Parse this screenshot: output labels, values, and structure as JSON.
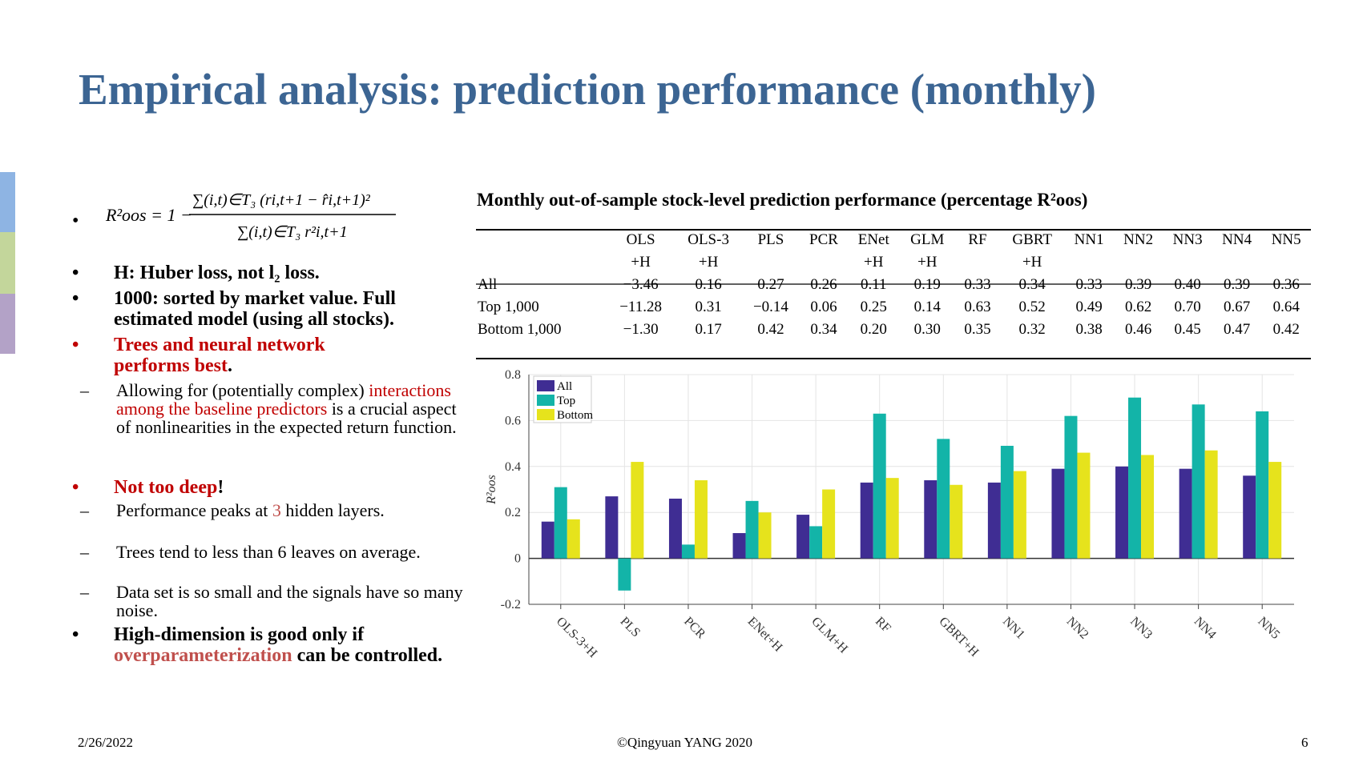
{
  "slide": {
    "title": "Empirical analysis: prediction performance (monthly)",
    "accent_colors": [
      "#8eb4e3",
      "#c3d69b",
      "#b3a2c7"
    ]
  },
  "bullets": {
    "formula": {
      "lhs": "R²oos = 1 −",
      "numerator": "∑(i,t)∈T₃ (ri,t+1 − r̂i,t+1)²",
      "denominator": "∑(i,t)∈T₃ r²i,t+1"
    },
    "huber": "H: Huber loss, not l₂ loss.",
    "sorted": "1000: sorted by market value. Full estimated model (using all stocks).",
    "trees_a": "Trees and neural network performs best",
    "trees_b": ".",
    "allow_a": "Allowing for (potentially complex)",
    "allow_b": "interactions among the baseline predictors",
    "allow_c": "is a crucial aspect of nonlinearities in the expected return function.",
    "deep_a": "Not too deep",
    "deep_b": "!",
    "peak_a": "Performance peaks at",
    "peak_b": "3",
    "peak_c": "hidden layers.",
    "trees_leaves": "Trees tend to less than 6 leaves on average.",
    "dataset": "Data set is so small and the signals have so many noise.",
    "hd_a": "High-dimension is good only if",
    "hd_b": "overparameterization",
    "hd_c": "can be controlled."
  },
  "table": {
    "title": "Monthly out-of-sample stock-level prediction performance (percentage R²oos)",
    "columns": [
      "OLS +H",
      "OLS-3 +H",
      "PLS",
      "PCR",
      "ENet +H",
      "GLM +H",
      "RF",
      "GBRT +H",
      "NN1",
      "NN2",
      "NN3",
      "NN4",
      "NN5"
    ],
    "rows": [
      {
        "label": "All",
        "values": [
          "−3.46",
          "0.16",
          "0.27",
          "0.26",
          "0.11",
          "0.19",
          "0.33",
          "0.34",
          "0.33",
          "0.39",
          "0.40",
          "0.39",
          "0.36"
        ]
      },
      {
        "label": "Top 1,000",
        "values": [
          "−11.28",
          "0.31",
          "−0.14",
          "0.06",
          "0.25",
          "0.14",
          "0.63",
          "0.52",
          "0.49",
          "0.62",
          "0.70",
          "0.67",
          "0.64"
        ]
      },
      {
        "label": "Bottom 1,000",
        "values": [
          "−1.30",
          "0.17",
          "0.42",
          "0.34",
          "0.20",
          "0.30",
          "0.35",
          "0.32",
          "0.38",
          "0.46",
          "0.45",
          "0.47",
          "0.42"
        ]
      }
    ]
  },
  "chart_data": {
    "type": "bar",
    "categories": [
      "OLS-3+H",
      "PLS",
      "PCR",
      "ENet+H",
      "GLM+H",
      "RF",
      "GBRT+H",
      "NN1",
      "NN2",
      "NN3",
      "NN4",
      "NN5"
    ],
    "series": [
      {
        "name": "All",
        "color": "#3f2d93",
        "values": [
          0.16,
          0.27,
          0.26,
          0.11,
          0.19,
          0.33,
          0.34,
          0.33,
          0.39,
          0.4,
          0.39,
          0.36
        ]
      },
      {
        "name": "Top",
        "color": "#13b4a8",
        "values": [
          0.31,
          -0.14,
          0.06,
          0.25,
          0.14,
          0.63,
          0.52,
          0.49,
          0.62,
          0.7,
          0.67,
          0.64
        ]
      },
      {
        "name": "Bottom",
        "color": "#e6e31c",
        "values": [
          0.17,
          0.42,
          0.34,
          0.2,
          0.3,
          0.35,
          0.32,
          0.38,
          0.46,
          0.45,
          0.47,
          0.42
        ]
      }
    ],
    "ylim": [
      -0.2,
      0.8
    ],
    "yticks": [
      "0.8",
      "0.6",
      "0.4",
      "0.2",
      "0",
      "-0.2"
    ],
    "ylabel": "R²oos",
    "xlabel": "",
    "legend_position": "top-left",
    "grid": true
  },
  "footer": {
    "date": "2/26/2022",
    "copyright": "©Qingyuan YANG 2020",
    "page": "6"
  }
}
